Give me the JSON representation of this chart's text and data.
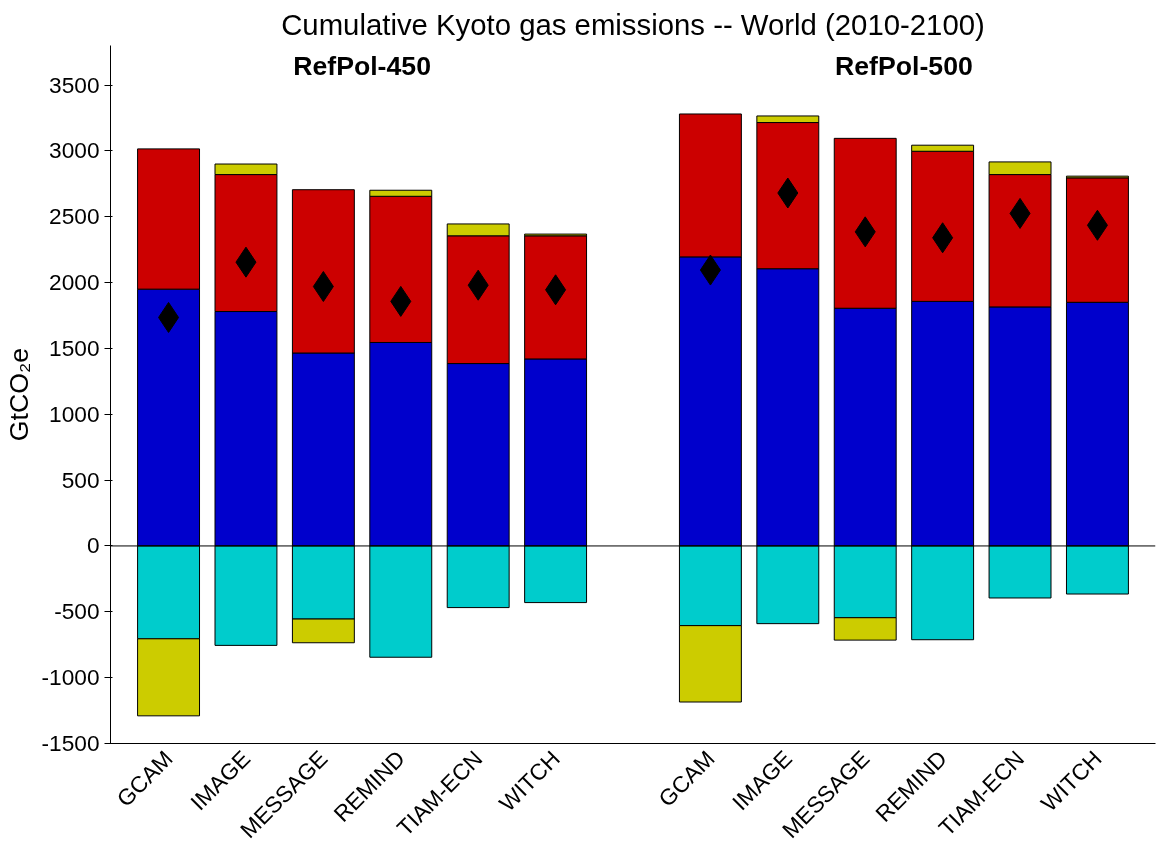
{
  "chart_data": {
    "type": "bar",
    "title": "Cumulative Kyoto gas emissions -- World (2010-2100)",
    "ylabel": "GtCO₂e",
    "categories": [
      "GCAM",
      "IMAGE",
      "MESSAGE",
      "REMIND",
      "TIAM-ECN",
      "WITCH",
      null,
      "GCAM",
      "IMAGE",
      "MESSAGE",
      "REMIND",
      "TIAM-ECN",
      "WITCH"
    ],
    "stacked": true,
    "series": [
      {
        "color": "#0000cc",
        "values": [
          1950,
          1780,
          1465,
          1545,
          1385,
          1420,
          null,
          2195,
          2105,
          1805,
          1857,
          1815,
          1850
        ]
      },
      {
        "color": "#cc0000",
        "values": [
          1065,
          1040,
          1240,
          1110,
          970,
          935,
          null,
          1085,
          1110,
          1290,
          1140,
          1005,
          945
        ]
      },
      {
        "color": "#00cccc",
        "values": [
          -705,
          -755,
          -555,
          -845,
          -468,
          -430,
          null,
          -605,
          -590,
          -545,
          -712,
          -395,
          -365
        ]
      },
      {
        "color": "#cccc00",
        "values": [
          -585,
          80,
          -180,
          46,
          90,
          13,
          null,
          -580,
          50,
          -170,
          46,
          96,
          13
        ]
      },
      {
        "type": "scatter",
        "color": "#000000",
        "marker": "diamond",
        "values": [
          1735,
          2155,
          1970,
          1857,
          1980,
          1945,
          null,
          2095,
          2680,
          2385,
          2340,
          2525,
          2435
        ]
      }
    ],
    "ylim": [
      -1500,
      3800
    ],
    "yticks": [
      -1500,
      -1000,
      -500,
      0,
      500,
      1000,
      1500,
      2000,
      2500,
      3000,
      3500
    ],
    "ref_lines": [
      {
        "axis": "y",
        "value": 0,
        "color": "#000000"
      }
    ],
    "annotations": [
      "RefPol-450",
      "RefPol-500"
    ],
    "grid": false
  }
}
